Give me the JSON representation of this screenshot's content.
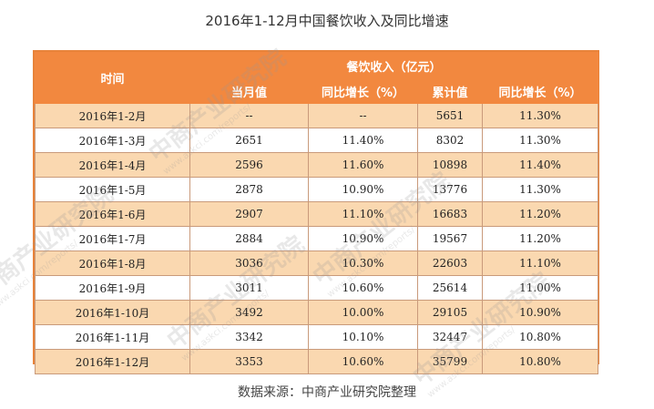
{
  "title": "2016年1-12月中国餐饮收入及同比增速",
  "table": {
    "header_group": "餐饮收入（亿元）",
    "columns": {
      "time": "时间",
      "monthly": "当月值",
      "monthly_yoy": "同比增长（%）",
      "cumulative": "累计值",
      "cumulative_yoy": "同比增长（%）"
    },
    "rows": [
      {
        "time": "2016年1-2月",
        "monthly": "--",
        "monthly_yoy": "--",
        "cumulative": "5651",
        "cumulative_yoy": "11.30%"
      },
      {
        "time": "2016年1-3月",
        "monthly": "2651",
        "monthly_yoy": "11.40%",
        "cumulative": "8302",
        "cumulative_yoy": "11.30%"
      },
      {
        "time": "2016年1-4月",
        "monthly": "2596",
        "monthly_yoy": "11.60%",
        "cumulative": "10898",
        "cumulative_yoy": "11.40%"
      },
      {
        "time": "2016年1-5月",
        "monthly": "2878",
        "monthly_yoy": "10.90%",
        "cumulative": "13776",
        "cumulative_yoy": "11.30%"
      },
      {
        "time": "2016年1-6月",
        "monthly": "2907",
        "monthly_yoy": "11.10%",
        "cumulative": "16683",
        "cumulative_yoy": "11.20%"
      },
      {
        "time": "2016年1-7月",
        "monthly": "2884",
        "monthly_yoy": "10.90%",
        "cumulative": "19567",
        "cumulative_yoy": "11.20%"
      },
      {
        "time": "2016年1-8月",
        "monthly": "3036",
        "monthly_yoy": "10.30%",
        "cumulative": "22603",
        "cumulative_yoy": "11.10%"
      },
      {
        "time": "2016年1-9月",
        "monthly": "3011",
        "monthly_yoy": "10.60%",
        "cumulative": "25614",
        "cumulative_yoy": "11.00%"
      },
      {
        "time": "2016年1-10月",
        "monthly": "3492",
        "monthly_yoy": "10.00%",
        "cumulative": "29105",
        "cumulative_yoy": "10.90%"
      },
      {
        "time": "2016年1-11月",
        "monthly": "3342",
        "monthly_yoy": "10.10%",
        "cumulative": "32447",
        "cumulative_yoy": "10.80%"
      },
      {
        "time": "2016年1-12月",
        "monthly": "3353",
        "monthly_yoy": "10.60%",
        "cumulative": "35799",
        "cumulative_yoy": "10.80%"
      }
    ]
  },
  "watermark": {
    "text": "中商产业研究院",
    "url": "www.askci.com/reports/"
  },
  "source": "数据来源：中商产业研究院整理",
  "colors": {
    "header": "#f2883f",
    "row_alt": "#fad8b0",
    "border": "#e8833a"
  }
}
